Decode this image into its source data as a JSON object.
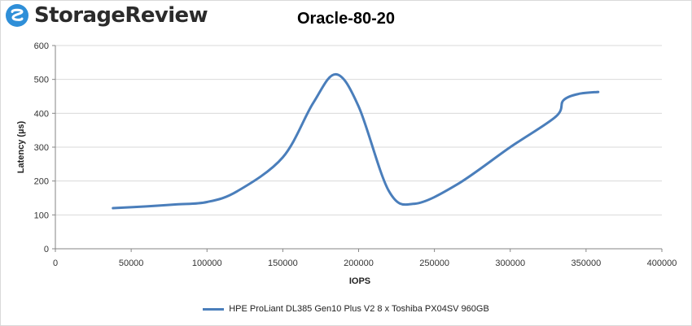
{
  "brand": {
    "name": "StorageReview",
    "logo_icon": "storagereview-logo-icon",
    "accent": "#2f8fd8"
  },
  "chart_data": {
    "type": "line",
    "title": "Oracle-80-20",
    "xlabel": "IOPS",
    "ylabel": "Latency (µs)",
    "xlim": [
      0,
      400000
    ],
    "ylim": [
      0,
      600
    ],
    "xticks": [
      "0",
      "50000",
      "100000",
      "150000",
      "200000",
      "250000",
      "300000",
      "350000",
      "400000"
    ],
    "yticks": [
      "0",
      "100",
      "200",
      "300",
      "400",
      "500",
      "600"
    ],
    "grid": "horizontal",
    "legend_position": "bottom",
    "series": [
      {
        "name": "HPE ProLiant DL385 Gen10 Plus V2 8 x Toshiba PX04SV 960GB",
        "color": "#4a7ebb",
        "x": [
          38000,
          60000,
          80000,
          100000,
          120000,
          150000,
          170000,
          185000,
          200000,
          220000,
          237000,
          265000,
          300000,
          330000,
          335000,
          345000,
          358000
        ],
        "y": [
          120,
          125,
          131,
          138,
          170,
          270,
          430,
          515,
          420,
          170,
          133,
          190,
          300,
          390,
          438,
          457,
          463
        ]
      }
    ]
  }
}
